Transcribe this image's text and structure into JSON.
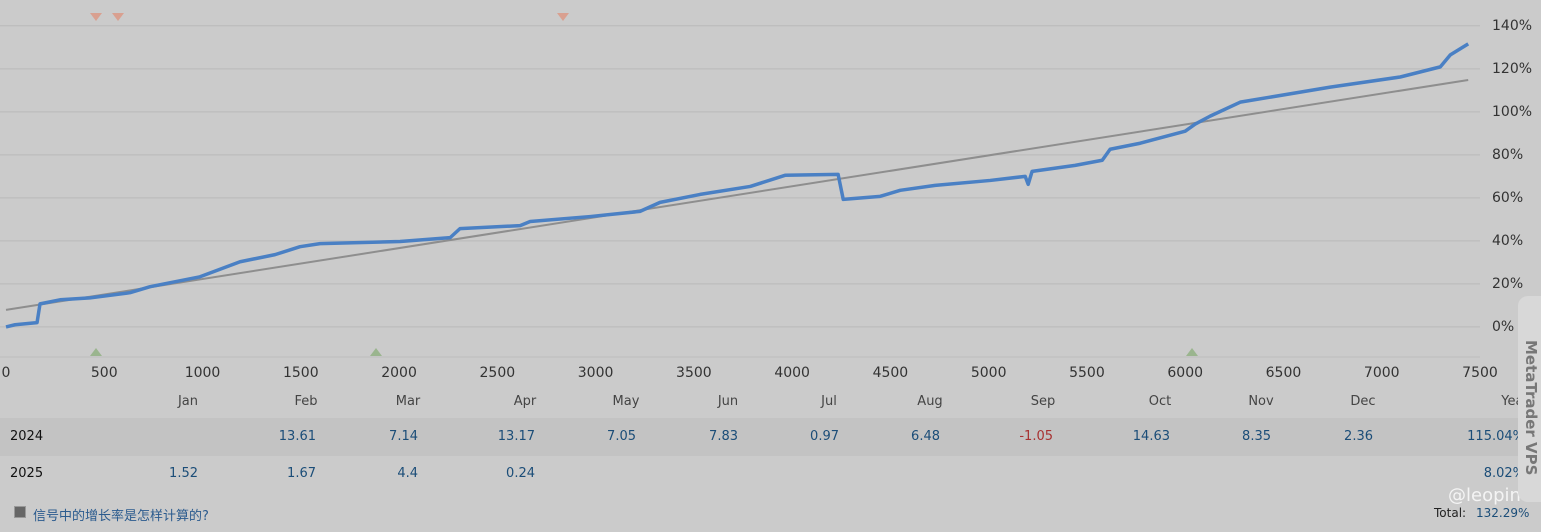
{
  "chart_data": {
    "type": "line",
    "xlim": [
      0,
      7500
    ],
    "ylim": [
      -14,
      152
    ],
    "xticks": [
      0,
      500,
      1000,
      1500,
      2000,
      2500,
      3000,
      3500,
      4000,
      4500,
      5000,
      5500,
      6000,
      6500,
      7000,
      7500
    ],
    "yticks": [
      {
        "value": 0,
        "label": "0%"
      },
      {
        "value": 20,
        "label": "20%"
      },
      {
        "value": 40,
        "label": "40%"
      },
      {
        "value": 60,
        "label": "60%"
      },
      {
        "value": 80,
        "label": "80%"
      },
      {
        "value": 100,
        "label": "100%"
      },
      {
        "value": 120,
        "label": "120%"
      },
      {
        "value": 140,
        "label": "140%"
      }
    ],
    "grid": true,
    "series": [
      {
        "color": "#4a80c4",
        "x": [
          0,
          46,
          158,
          173,
          275,
          427,
          631,
          733,
          987,
          1191,
          1369,
          1496,
          1598,
          2005,
          2260,
          2310,
          2616,
          2667,
          2972,
          3226,
          3328,
          3532,
          3787,
          3964,
          4234,
          4260,
          4448,
          4550,
          4728,
          5008,
          5186,
          5201,
          5221,
          5440,
          5578,
          5618,
          5771,
          6000,
          6051,
          6127,
          6280,
          6738,
          7094,
          7298,
          7349,
          7440
        ],
        "values": [
          0,
          1,
          2,
          10.7,
          12.6,
          13.5,
          15.9,
          18.7,
          23.3,
          30.3,
          33.6,
          37.3,
          38.7,
          39.7,
          41.5,
          45.7,
          47.1,
          49.0,
          51.3,
          53.7,
          57.9,
          61.6,
          65.3,
          70.5,
          70.9,
          59.3,
          60.7,
          63.5,
          65.8,
          68.1,
          70.0,
          66.3,
          72.3,
          75.1,
          77.5,
          82.6,
          85.4,
          91,
          94.3,
          98.0,
          104.5,
          111.5,
          116.2,
          120.9,
          126.5,
          131.6
        ]
      },
      {
        "color": "#8e8e8e",
        "x": [
          0,
          7440
        ],
        "values": [
          7.9,
          114.8
        ]
      }
    ]
  },
  "table": {
    "header": [
      "Jan",
      "Feb",
      "Mar",
      "Apr",
      "May",
      "Jun",
      "Jul",
      "Aug",
      "Sep",
      "Oct",
      "Nov",
      "Dec",
      "Year"
    ],
    "rows": [
      [
        "2024",
        null,
        13.61,
        7.14,
        13.17,
        7.05,
        7.83,
        0.97,
        6.48,
        -1.05,
        14.63,
        8.35,
        2.36,
        "115.04%"
      ],
      [
        "2025",
        1.52,
        1.67,
        4.4,
        0.24,
        null,
        null,
        null,
        null,
        null,
        null,
        null,
        null,
        "8.02%"
      ]
    ]
  },
  "footer": {
    "link": "信号中的增长率是怎样计算的?",
    "total_label": "Total:",
    "total_value": "132.29%"
  },
  "watermark": "@leopin",
  "side_tab": "MetaTrader VPS"
}
